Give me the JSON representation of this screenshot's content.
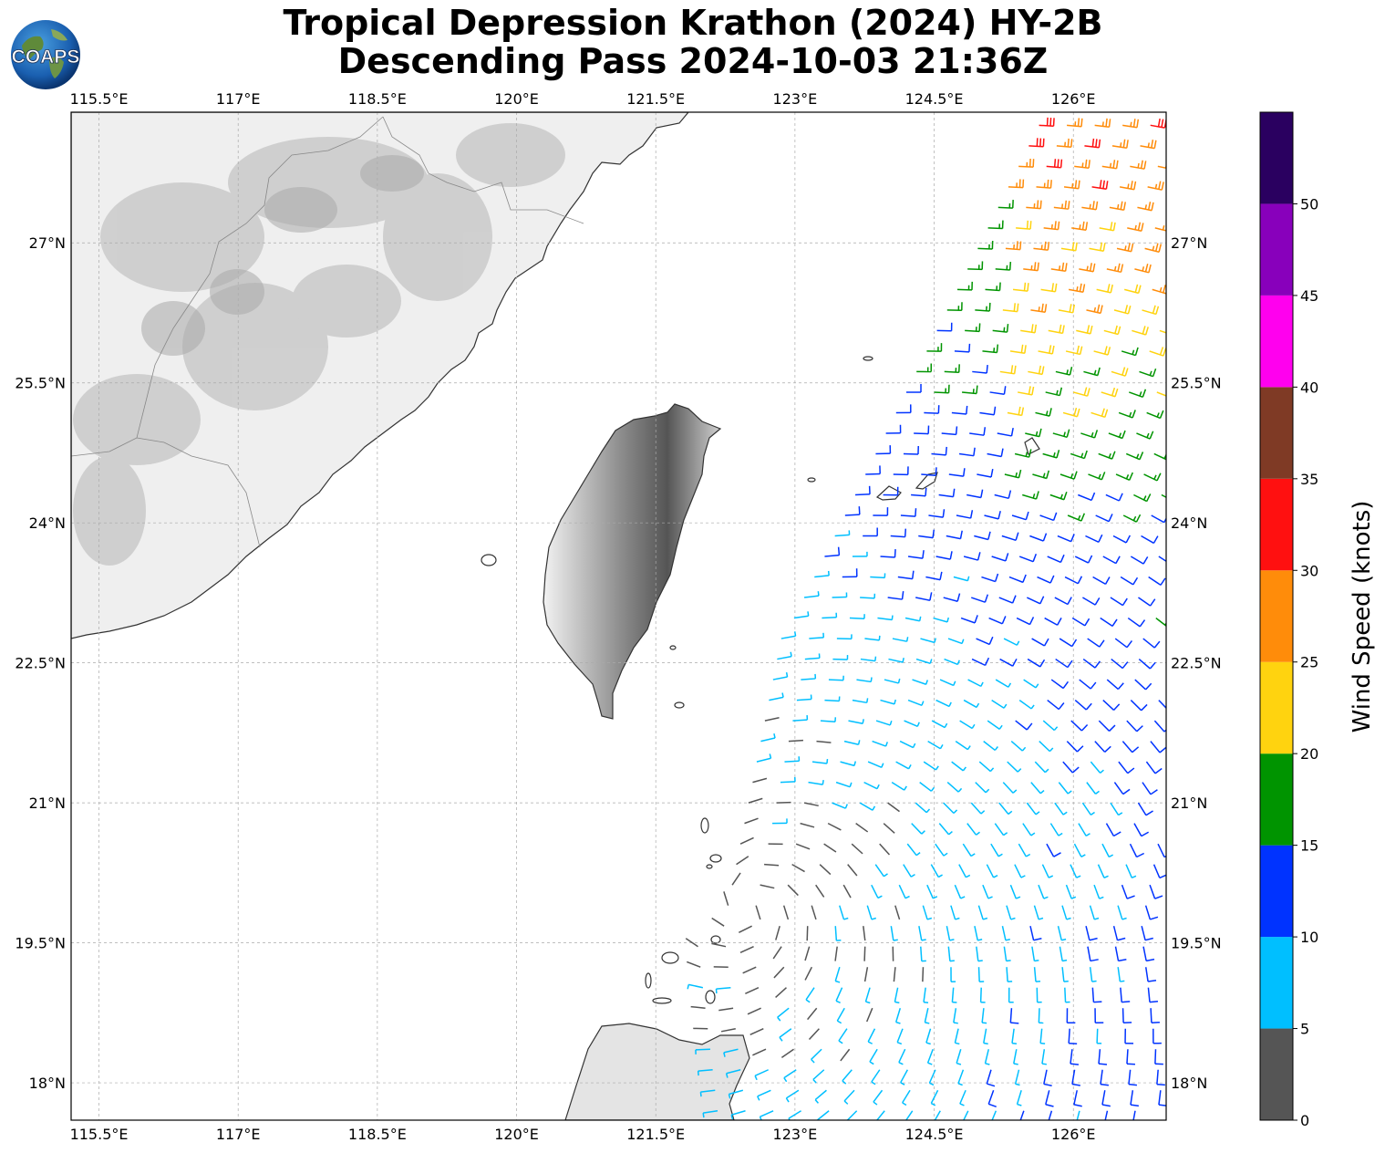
{
  "title": {
    "line1": "Tropical Depression Krathon (2024) HY-2B",
    "line2": "Descending Pass 2024-10-03 21:36Z"
  },
  "logo": {
    "text": "COAPS",
    "icon": "globe-logo-icon"
  },
  "map": {
    "lon_range": [
      115.2,
      127.0
    ],
    "lat_range": [
      17.6,
      28.4
    ],
    "lon_ticks": [
      "115.5°E",
      "117°E",
      "118.5°E",
      "120°E",
      "121.5°E",
      "123°E",
      "124.5°E",
      "126°E"
    ],
    "lat_ticks": [
      "27°N",
      "25.5°N",
      "24°N",
      "22.5°N",
      "21°N",
      "19.5°N",
      "18°N"
    ],
    "gridlines": true,
    "storm_center": {
      "lon": 122.5,
      "lat": 19.9
    }
  },
  "colorbar": {
    "label": "Wind Speed (knots)",
    "ticks": [
      "0",
      "5",
      "10",
      "15",
      "20",
      "25",
      "30",
      "35",
      "40",
      "45",
      "50"
    ],
    "bins": [
      {
        "min": 0,
        "max": 5,
        "color": "#555555"
      },
      {
        "min": 5,
        "max": 10,
        "color": "#00bfff"
      },
      {
        "min": 10,
        "max": 15,
        "color": "#0033ff"
      },
      {
        "min": 15,
        "max": 20,
        "color": "#009400"
      },
      {
        "min": 20,
        "max": 25,
        "color": "#ffd30f"
      },
      {
        "min": 25,
        "max": 30,
        "color": "#ff8c0a"
      },
      {
        "min": 30,
        "max": 35,
        "color": "#ff1010"
      },
      {
        "min": 35,
        "max": 40,
        "color": "#7f3a25"
      },
      {
        "min": 40,
        "max": 45,
        "color": "#ff00ee"
      },
      {
        "min": 45,
        "max": 50,
        "color": "#8800bb"
      },
      {
        "min": 50,
        "max": 55,
        "color": "#2a0060"
      }
    ]
  }
}
